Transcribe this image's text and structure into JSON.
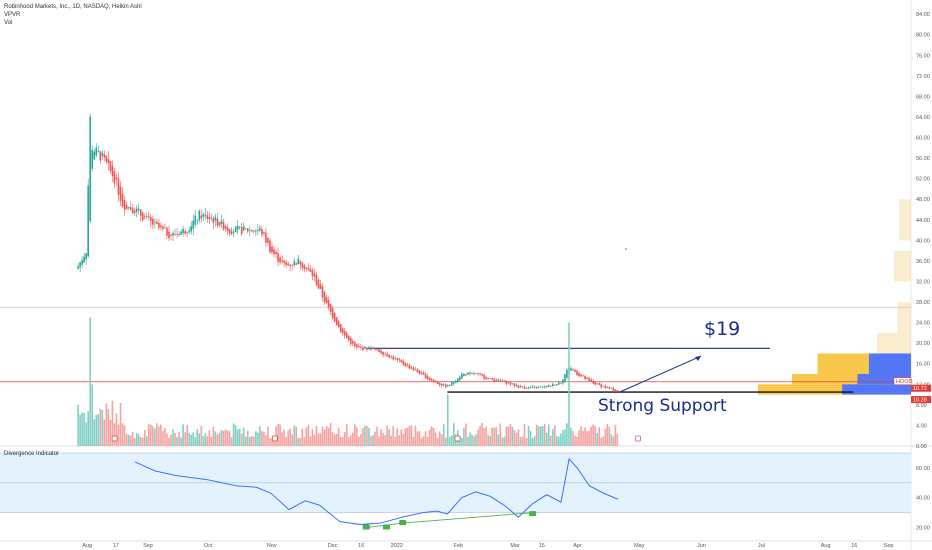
{
  "legend": {
    "title": "Robinhood Markets, Inc., 1D, NASDAQ, Heikin Ashi",
    "line2": "VPVR",
    "line3": "Vol"
  },
  "indicator_title": "Divergence Indicator",
  "annotations": {
    "target": "$19",
    "support": "Strong Support"
  },
  "price_tags": {
    "symbol": "HOOD",
    "last": "10.72",
    "low": "10.28"
  },
  "colors": {
    "up": "#26a69a",
    "down": "#ef5350",
    "vol_up": "#7fcfc6",
    "vol_down": "#f4a29f",
    "annotation": "#1a2c8c",
    "hline_red": "#e53935",
    "osc_line": "#2962ff",
    "osc_band": "#e3f2fd",
    "vpvr_blue": "#4a73ff",
    "vpvr_orange": "#f9c440",
    "bull_div": "#4caf50"
  },
  "chart_data": {
    "type": "candlestick",
    "title": "Robinhood Markets, Inc., 1D, NASDAQ, Heikin Ashi",
    "price_axis": {
      "labels": [
        "84.00",
        "80.00",
        "76.00",
        "72.00",
        "68.00",
        "64.00",
        "60.00",
        "56.00",
        "52.00",
        "48.00",
        "44.00",
        "40.00",
        "36.00",
        "32.00",
        "28.00",
        "24.00",
        "20.00",
        "16.00",
        "12.00",
        "8.00",
        "4.00",
        "0.00"
      ]
    },
    "osc_axis": {
      "labels": [
        "60.00",
        "40.00",
        "20.00"
      ]
    },
    "x_labels": [
      "Aug",
      "17",
      "Sep",
      "Oct",
      "Nov",
      "Dec",
      "16",
      "2022",
      "Feb",
      "Mar",
      "15",
      "Apr",
      "May",
      "Jun",
      "Jul",
      "Aug",
      "16",
      "Sep"
    ],
    "price_path": [
      [
        "2021-07-29",
        35
      ],
      [
        "2021-08-02",
        38
      ],
      [
        "2021-08-04",
        64
      ],
      [
        "2021-08-05",
        58
      ],
      [
        "2021-08-10",
        56
      ],
      [
        "2021-08-16",
        52
      ],
      [
        "2021-08-20",
        47
      ],
      [
        "2021-08-26",
        46
      ],
      [
        "2021-09-01",
        44
      ],
      [
        "2021-09-08",
        42
      ],
      [
        "2021-09-13",
        41
      ],
      [
        "2021-09-20",
        42
      ],
      [
        "2021-09-27",
        45
      ],
      [
        "2021-10-04",
        44
      ],
      [
        "2021-10-12",
        42
      ],
      [
        "2021-10-20",
        42
      ],
      [
        "2021-10-27",
        42
      ],
      [
        "2021-11-01",
        38
      ],
      [
        "2021-11-08",
        35
      ],
      [
        "2021-11-15",
        36
      ],
      [
        "2021-11-22",
        33
      ],
      [
        "2021-11-29",
        27
      ],
      [
        "2021-12-06",
        22
      ],
      [
        "2021-12-13",
        19
      ],
      [
        "2021-12-20",
        19
      ],
      [
        "2021-12-27",
        18
      ],
      [
        "2022-01-05",
        16
      ],
      [
        "2022-01-12",
        14.5
      ],
      [
        "2022-01-20",
        12.5
      ],
      [
        "2022-01-27",
        11.5
      ],
      [
        "2022-02-03",
        14
      ],
      [
        "2022-02-10",
        14
      ],
      [
        "2022-02-17",
        13
      ],
      [
        "2022-02-24",
        12.5
      ],
      [
        "2022-03-03",
        11.5
      ],
      [
        "2022-03-10",
        11.3
      ],
      [
        "2022-03-17",
        11.5
      ],
      [
        "2022-03-24",
        12.5
      ],
      [
        "2022-03-28",
        15.5
      ],
      [
        "2022-04-01",
        14
      ],
      [
        "2022-04-07",
        12.5
      ],
      [
        "2022-04-14",
        11.5
      ],
      [
        "2022-04-21",
        10.7
      ]
    ],
    "volume_spikes": [
      [
        "2021-07-29",
        8
      ],
      [
        "2021-08-04",
        25
      ],
      [
        "2021-08-05",
        12
      ],
      [
        "2021-08-10",
        7
      ],
      [
        "2022-01-27",
        10
      ],
      [
        "2022-03-28",
        24
      ]
    ],
    "oscillator_path": [
      [
        "2021-08-26",
        64
      ],
      [
        "2021-09-05",
        58
      ],
      [
        "2021-09-15",
        55
      ],
      [
        "2021-10-01",
        52
      ],
      [
        "2021-10-15",
        48
      ],
      [
        "2021-10-25",
        47
      ],
      [
        "2021-11-01",
        43
      ],
      [
        "2021-11-10",
        32
      ],
      [
        "2021-11-18",
        38
      ],
      [
        "2021-11-25",
        35
      ],
      [
        "2021-12-05",
        24
      ],
      [
        "2021-12-15",
        22
      ],
      [
        "2021-12-25",
        23
      ],
      [
        "2022-01-05",
        27
      ],
      [
        "2022-01-15",
        30
      ],
      [
        "2022-01-22",
        31
      ],
      [
        "2022-01-27",
        29
      ],
      [
        "2022-02-03",
        40
      ],
      [
        "2022-02-10",
        44
      ],
      [
        "2022-02-17",
        41
      ],
      [
        "2022-02-24",
        35
      ],
      [
        "2022-03-03",
        27
      ],
      [
        "2022-03-10",
        36
      ],
      [
        "2022-03-17",
        42
      ],
      [
        "2022-03-24",
        37
      ],
      [
        "2022-03-28",
        66
      ],
      [
        "2022-04-01",
        60
      ],
      [
        "2022-04-07",
        48
      ],
      [
        "2022-04-14",
        43
      ],
      [
        "2022-04-21",
        39
      ]
    ],
    "overbought_level": 70,
    "midline_level": 50,
    "oversold_level": 30,
    "horizontal_lines": [
      {
        "price": 19,
        "label": "$19"
      },
      {
        "price": 12.5
      },
      {
        "price": 10.5,
        "label": "Strong Support"
      },
      {
        "price": 27
      }
    ],
    "vpvr_rows": [
      {
        "price_from": 14,
        "price_to": 18,
        "value": 0.55
      },
      {
        "price_from": 12,
        "price_to": 14,
        "value": 0.7
      },
      {
        "price_from": 10,
        "price_to": 12,
        "value": 0.9
      },
      {
        "price_from": 18,
        "price_to": 22,
        "value": 0.2
      },
      {
        "price_from": 22,
        "price_to": 28,
        "value": 0.08
      },
      {
        "price_from": 32,
        "price_to": 38,
        "value": 0.1
      },
      {
        "price_from": 40,
        "price_to": 48,
        "value": 0.07
      }
    ],
    "divergence_markers": [
      "2021-12-18",
      "2021-12-28",
      "2022-01-05",
      "2022-03-10"
    ],
    "event_markers": [
      "2021-08-16",
      "2021-11-03",
      "2022-02-01",
      "2022-05-01"
    ]
  }
}
